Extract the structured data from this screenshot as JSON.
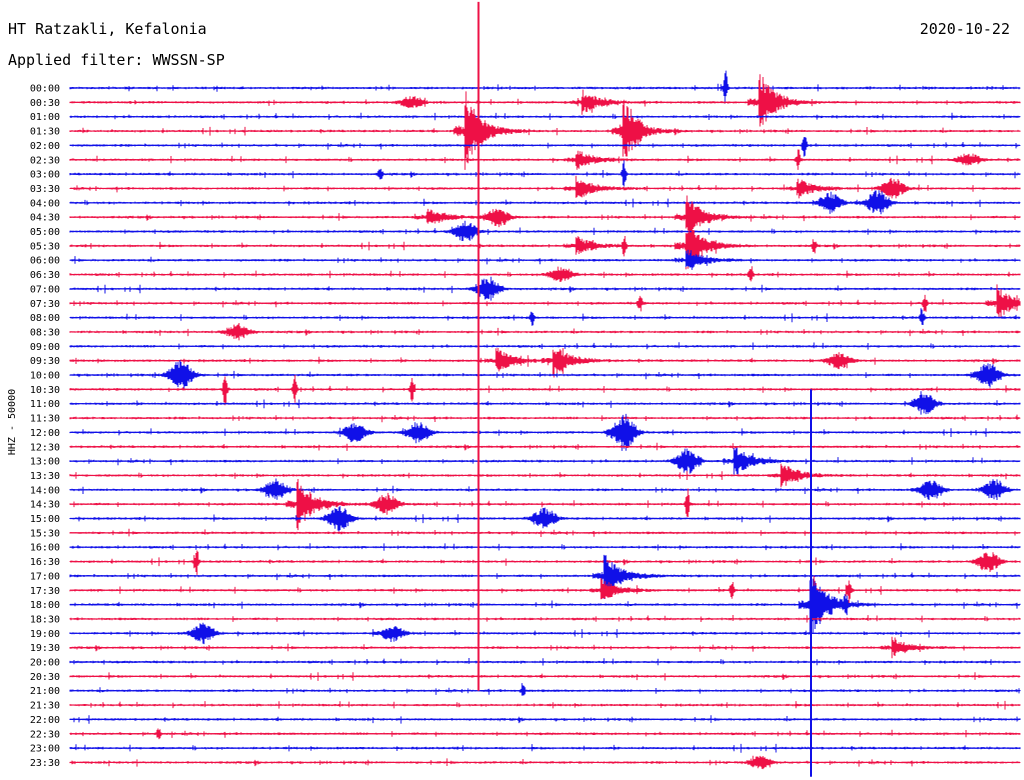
{
  "header": {
    "station": "HT Ratzakli, Kefalonia",
    "date": "2020-10-22",
    "filter": "Applied filter: WWSSN-SP"
  },
  "colors": {
    "blue": "#1010e8",
    "red": "#ee1046",
    "background": "#ffffff",
    "text": "#000000"
  },
  "chart_data": {
    "type": "line",
    "ylabel": "HHZ - 50000",
    "trace_colors": [
      "#1010e8",
      "#ee1046"
    ],
    "row_labels": [
      "00:00",
      "00:30",
      "01:00",
      "01:30",
      "02:00",
      "02:30",
      "03:00",
      "03:30",
      "04:00",
      "04:30",
      "05:00",
      "05:30",
      "06:00",
      "06:30",
      "07:00",
      "07:30",
      "08:00",
      "08:30",
      "09:00",
      "09:30",
      "10:00",
      "10:30",
      "11:00",
      "11:30",
      "12:00",
      "12:30",
      "13:00",
      "13:30",
      "14:00",
      "14:30",
      "15:00",
      "15:30",
      "16:00",
      "16:30",
      "17:00",
      "17:30",
      "18:00",
      "18:30",
      "19:00",
      "19:30",
      "20:00",
      "20:30",
      "21:00",
      "21:30",
      "22:00",
      "22:30",
      "23:00",
      "23:30"
    ],
    "events": [
      {
        "row": 0,
        "minute": 20.7,
        "amp": 18,
        "kind": "spike"
      },
      {
        "row": 1,
        "minute": 16.2,
        "amp": 12,
        "kind": "quake"
      },
      {
        "row": 1,
        "minute": 21.8,
        "amp": 30,
        "kind": "quake"
      },
      {
        "row": 1,
        "minute": 10.8,
        "amp": 6,
        "kind": "burst"
      },
      {
        "row": 3,
        "minute": 12.5,
        "amp": 40,
        "kind": "quake"
      },
      {
        "row": 3,
        "minute": 17.5,
        "amp": 20,
        "kind": "quake"
      },
      {
        "row": 3,
        "minute": 17.7,
        "amp": 10,
        "kind": "burst"
      },
      {
        "row": 4,
        "minute": 23.2,
        "amp": 12,
        "kind": "spike"
      },
      {
        "row": 5,
        "minute": 28.4,
        "amp": 6,
        "kind": "burst"
      },
      {
        "row": 5,
        "minute": 23.0,
        "amp": 10,
        "kind": "spike"
      },
      {
        "row": 5,
        "minute": 16.0,
        "amp": 10,
        "kind": "quake"
      },
      {
        "row": 6,
        "minute": 9.8,
        "amp": 8,
        "kind": "spike"
      },
      {
        "row": 6,
        "minute": 17.5,
        "amp": 14,
        "kind": "spike"
      },
      {
        "row": 7,
        "minute": 16.0,
        "amp": 12,
        "kind": "quake"
      },
      {
        "row": 7,
        "minute": 23.0,
        "amp": 10,
        "kind": "quake"
      },
      {
        "row": 7,
        "minute": 26.0,
        "amp": 10,
        "kind": "burst"
      },
      {
        "row": 8,
        "minute": 24.0,
        "amp": 10,
        "kind": "burst"
      },
      {
        "row": 8,
        "minute": 25.5,
        "amp": 12,
        "kind": "burst"
      },
      {
        "row": 9,
        "minute": 11.3,
        "amp": 10,
        "kind": "quake"
      },
      {
        "row": 9,
        "minute": 13.5,
        "amp": 10,
        "kind": "burst"
      },
      {
        "row": 9,
        "minute": 19.5,
        "amp": 22,
        "kind": "quake"
      },
      {
        "row": 10,
        "minute": 12.5,
        "amp": 10,
        "kind": "burst"
      },
      {
        "row": 11,
        "minute": 19.5,
        "amp": 26,
        "kind": "quake"
      },
      {
        "row": 11,
        "minute": 16.0,
        "amp": 10,
        "kind": "quake"
      },
      {
        "row": 11,
        "minute": 17.5,
        "amp": 10,
        "kind": "spike"
      },
      {
        "row": 11,
        "minute": 23.5,
        "amp": 8,
        "kind": "spike"
      },
      {
        "row": 12,
        "minute": 19.5,
        "amp": 12,
        "kind": "quake"
      },
      {
        "row": 13,
        "minute": 21.5,
        "amp": 10,
        "kind": "spike"
      },
      {
        "row": 13,
        "minute": 15.5,
        "amp": 8,
        "kind": "burst"
      },
      {
        "row": 14,
        "minute": 13.2,
        "amp": 12,
        "kind": "burst"
      },
      {
        "row": 15,
        "minute": 29.3,
        "amp": 18,
        "kind": "quake"
      },
      {
        "row": 15,
        "minute": 18.0,
        "amp": 10,
        "kind": "spike"
      },
      {
        "row": 15,
        "minute": 27.0,
        "amp": 10,
        "kind": "spike"
      },
      {
        "row": 16,
        "minute": 14.6,
        "amp": 10,
        "kind": "spike"
      },
      {
        "row": 16,
        "minute": 26.9,
        "amp": 10,
        "kind": "spike"
      },
      {
        "row": 17,
        "minute": 5.3,
        "amp": 8,
        "kind": "burst"
      },
      {
        "row": 19,
        "minute": 13.5,
        "amp": 12,
        "kind": "quake"
      },
      {
        "row": 19,
        "minute": 15.3,
        "amp": 16,
        "kind": "quake"
      },
      {
        "row": 19,
        "minute": 24.3,
        "amp": 8,
        "kind": "burst"
      },
      {
        "row": 20,
        "minute": 3.5,
        "amp": 16,
        "kind": "burst"
      },
      {
        "row": 20,
        "minute": 29.0,
        "amp": 12,
        "kind": "burst"
      },
      {
        "row": 21,
        "minute": 4.9,
        "amp": 18,
        "kind": "spike"
      },
      {
        "row": 21,
        "minute": 7.1,
        "amp": 14,
        "kind": "spike"
      },
      {
        "row": 21,
        "minute": 10.8,
        "amp": 12,
        "kind": "spike"
      },
      {
        "row": 22,
        "minute": 27.0,
        "amp": 10,
        "kind": "burst"
      },
      {
        "row": 24,
        "minute": 9.0,
        "amp": 10,
        "kind": "burst"
      },
      {
        "row": 24,
        "minute": 17.5,
        "amp": 18,
        "kind": "burst"
      },
      {
        "row": 24,
        "minute": 11.0,
        "amp": 10,
        "kind": "burst"
      },
      {
        "row": 26,
        "minute": 19.5,
        "amp": 12,
        "kind": "burst"
      },
      {
        "row": 26,
        "minute": 21.0,
        "amp": 16,
        "kind": "quake"
      },
      {
        "row": 27,
        "minute": 22.5,
        "amp": 12,
        "kind": "quake"
      },
      {
        "row": 28,
        "minute": 6.5,
        "amp": 10,
        "kind": "burst"
      },
      {
        "row": 28,
        "minute": 27.2,
        "amp": 10,
        "kind": "burst"
      },
      {
        "row": 28,
        "minute": 29.2,
        "amp": 10,
        "kind": "burst"
      },
      {
        "row": 29,
        "minute": 7.2,
        "amp": 26,
        "kind": "quake"
      },
      {
        "row": 29,
        "minute": 10.0,
        "amp": 10,
        "kind": "burst"
      },
      {
        "row": 29,
        "minute": 19.5,
        "amp": 16,
        "kind": "spike"
      },
      {
        "row": 30,
        "minute": 8.5,
        "amp": 12,
        "kind": "burst"
      },
      {
        "row": 30,
        "minute": 15.0,
        "amp": 10,
        "kind": "burst"
      },
      {
        "row": 33,
        "minute": 4.0,
        "amp": 14,
        "kind": "spike"
      },
      {
        "row": 33,
        "minute": 29.0,
        "amp": 10,
        "kind": "burst"
      },
      {
        "row": 34,
        "minute": 16.9,
        "amp": 22,
        "kind": "quake"
      },
      {
        "row": 35,
        "minute": 16.8,
        "amp": 12,
        "kind": "quake"
      },
      {
        "row": 35,
        "minute": 20.9,
        "amp": 12,
        "kind": "spike"
      },
      {
        "row": 35,
        "minute": 23.5,
        "amp": 14,
        "kind": "spike"
      },
      {
        "row": 35,
        "minute": 24.6,
        "amp": 14,
        "kind": "spike"
      },
      {
        "row": 36,
        "minute": 23.4,
        "amp": 36,
        "kind": "quake"
      },
      {
        "row": 36,
        "minute": 24.5,
        "amp": 10,
        "kind": "spike"
      },
      {
        "row": 38,
        "minute": 4.2,
        "amp": 10,
        "kind": "burst"
      },
      {
        "row": 38,
        "minute": 10.2,
        "amp": 8,
        "kind": "burst"
      },
      {
        "row": 39,
        "minute": 26.0,
        "amp": 10,
        "kind": "quake"
      },
      {
        "row": 42,
        "minute": 14.3,
        "amp": 8,
        "kind": "spike"
      },
      {
        "row": 45,
        "minute": 2.8,
        "amp": 6,
        "kind": "spike"
      },
      {
        "row": 47,
        "minute": 21.8,
        "amp": 6,
        "kind": "burst"
      }
    ],
    "tall_lines": [
      {
        "minute": 12.9,
        "from_row": -6,
        "to_row": 42,
        "color": "#ee1046"
      },
      {
        "minute": 23.4,
        "from_row": 21,
        "to_row": 48,
        "color": "#1010e8"
      }
    ]
  }
}
